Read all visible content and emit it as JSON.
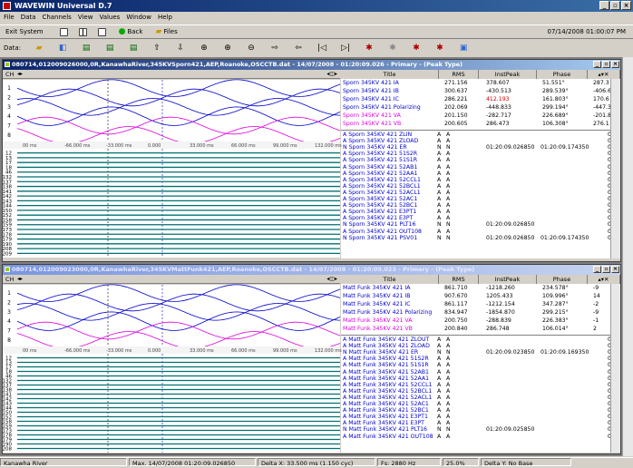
{
  "app": {
    "title": "WAVEWIN Universal D.7"
  },
  "menu": [
    "File",
    "Data",
    "Channels",
    "View",
    "Values",
    "Window",
    "Help"
  ],
  "toolbar1": {
    "exit": "Exit System",
    "back": "Back",
    "files": "Files",
    "datetime": "07/14/2008 01:00:07 PM"
  },
  "toolbar2": {
    "data_label": "Data:"
  },
  "window1": {
    "title": "080714,012009026000,0R,KanawhaRiver,345KVSporn421,AEP,Roanoke,OSCCTB.dat - 14/07/2008 - 01:20:09.026 - Primary - (Peak Type)",
    "ch_label": "CH",
    "columns": [
      "Title",
      "RMS",
      "InstPeak",
      "Phase"
    ],
    "analog": [
      {
        "num": "1",
        "title": "Sporn 345KV 421 IA",
        "rms": "271.156",
        "peak": "378.607",
        "phase": "51.551°",
        "extra": "287.3",
        "color": "#00c"
      },
      {
        "num": "2",
        "title": "Sporn 345KV 421 IB",
        "rms": "300.637",
        "peak": "-430.513",
        "phase": "289.539°",
        "extra": "-406.6",
        "color": "#00c"
      },
      {
        "num": "3",
        "title": "Sporn 345KV 421 IC",
        "rms": "286.221",
        "peak": "412.193",
        "phase": "161.803°",
        "extra": "170.6",
        "color": "#00c"
      },
      {
        "num": "4",
        "title": "Sporn 345KV 421 Polarizing",
        "rms": "202.069",
        "peak": "-448.833",
        "phase": "299.194°",
        "extra": "-447.3",
        "color": "#00c"
      },
      {
        "num": "7",
        "title": "Sporn 345KV 421 VA",
        "rms": "201.150",
        "peak": "-282.717",
        "phase": "226.689°",
        "extra": "-201.8",
        "color": "#d0d"
      },
      {
        "num": "8",
        "title": "Sporn 345KV 421 VB",
        "rms": "200.605",
        "peak": "286.473",
        "phase": "106.308°",
        "extra": "276.1",
        "color": "#d0d"
      }
    ],
    "ticks": [
      "00 ms",
      "-66.000 ms",
      "-33.000 ms",
      "0.000",
      "33.000 ms",
      "66.000 ms",
      "99.000 ms",
      "132.000 ms"
    ],
    "dig_nums": [
      "12",
      "13",
      "17",
      "18",
      "46",
      "132",
      "137",
      "138",
      "141",
      "142",
      "143",
      "144",
      "150",
      "152",
      "158",
      "159",
      "173",
      "178",
      "179",
      "190",
      "208",
      "209"
    ],
    "digital": [
      {
        "t": "A  Sporn 345KV 421 ZLIN",
        "a": "A",
        "b": "A",
        "v1": "",
        "v2": "",
        "c": "000"
      },
      {
        "t": "A  Sporn 345KV 421 ZLOAD",
        "a": "A",
        "b": "A",
        "v1": "",
        "v2": "",
        "c": "000"
      },
      {
        "t": "N  Sporn 345KV 421 ER",
        "a": "N",
        "b": "N",
        "v1": "01:20:09.026850",
        "v2": "01:20:09.174350",
        "c": "000"
      },
      {
        "t": "A  Sporn 345KV 421 51S2R",
        "a": "A",
        "b": "A",
        "v1": "",
        "v2": "",
        "c": "000"
      },
      {
        "t": "A  Sporn 345KV 421 51S1R",
        "a": "A",
        "b": "A",
        "v1": "",
        "v2": "",
        "c": "000"
      },
      {
        "t": "A  Sporn 345KV 421 52AB1",
        "a": "A",
        "b": "A",
        "v1": "",
        "v2": "",
        "c": "000"
      },
      {
        "t": "A  Sporn 345KV 421 52AA1",
        "a": "A",
        "b": "A",
        "v1": "",
        "v2": "",
        "c": "000"
      },
      {
        "t": "A  Sporn 345KV 421 52CCL1",
        "a": "A",
        "b": "A",
        "v1": "",
        "v2": "",
        "c": "000"
      },
      {
        "t": "A  Sporn 345KV 421 52BCL1",
        "a": "A",
        "b": "A",
        "v1": "",
        "v2": "",
        "c": "000"
      },
      {
        "t": "A  Sporn 345KV 421 52ACL1",
        "a": "A",
        "b": "A",
        "v1": "",
        "v2": "",
        "c": "000"
      },
      {
        "t": "A  Sporn 345KV 421 52AC1",
        "a": "A",
        "b": "A",
        "v1": "",
        "v2": "",
        "c": "000"
      },
      {
        "t": "A  Sporn 345KV 421 52BC1",
        "a": "A",
        "b": "A",
        "v1": "",
        "v2": "",
        "c": "000"
      },
      {
        "t": "A  Sporn 345KV 421 E3PT1",
        "a": "A",
        "b": "A",
        "v1": "",
        "v2": "",
        "c": "000"
      },
      {
        "t": "A  Sporn 345KV 421 E3PT",
        "a": "A",
        "b": "A",
        "v1": "",
        "v2": "",
        "c": "000"
      },
      {
        "t": "N  Sporn 345KV 421 PLT16",
        "a": "N",
        "b": "N",
        "v1": "01:20:09.026850",
        "v2": "",
        "c": "001"
      },
      {
        "t": "A  Sporn 345KV 421 OUT108",
        "a": "A",
        "b": "A",
        "v1": "",
        "v2": "",
        "c": "000"
      },
      {
        "t": "N  Sporn 345KV 421 PSV01",
        "a": "N",
        "b": "N",
        "v1": "01:20:09.026850",
        "v2": "01:20:09.174350",
        "c": "002"
      }
    ]
  },
  "window2": {
    "title": "080714,012009023000,0R,KanawhaRiver,345KVMattFunk421,AEP,Roanoke,OSCCTB.dat - 14/07/2008 - 01:20:09.023 - Primary - (Peak Type)",
    "ch_label": "CH",
    "columns": [
      "Title",
      "RMS",
      "InstPeak",
      "Phase"
    ],
    "analog": [
      {
        "num": "1",
        "title": "Matt Funk 345KV 421 IA",
        "rms": "861.710",
        "peak": "-1218.260",
        "phase": "234.578°",
        "extra": "-9",
        "color": "#00c"
      },
      {
        "num": "2",
        "title": "Matt Funk 345KV 421 IB",
        "rms": "907.670",
        "peak": "1205.433",
        "phase": "109.996°",
        "extra": "14",
        "color": "#00c"
      },
      {
        "num": "3",
        "title": "Matt Funk 345KV 421 IC",
        "rms": "861.117",
        "peak": "-1212.154",
        "phase": "347.287°",
        "extra": "-2",
        "color": "#00c"
      },
      {
        "num": "4",
        "title": "Matt Funk 345KV 421 Polarizing",
        "rms": "834.947",
        "peak": "-1854.870",
        "phase": "299.215°",
        "extra": "-9",
        "color": "#00c"
      },
      {
        "num": "7",
        "title": "Matt Funk 345KV 421 VA",
        "rms": "200.750",
        "peak": "-288.839",
        "phase": "226.383°",
        "extra": "-1",
        "color": "#d0d"
      },
      {
        "num": "8",
        "title": "Matt Funk 345KV 421 VB",
        "rms": "200.840",
        "peak": "286.748",
        "phase": "106.014°",
        "extra": "2",
        "color": "#d0d"
      }
    ],
    "ticks": [
      "00 ms",
      "-66.000 ms",
      "-33.000 ms",
      "0.000",
      "33.000 ms",
      "66.000 ms",
      "99.000 ms",
      "132.000 ms"
    ],
    "dig_nums": [
      "12",
      "13",
      "17",
      "18",
      "46",
      "132",
      "137",
      "138",
      "141",
      "142",
      "143",
      "144",
      "150",
      "152",
      "158",
      "159",
      "173",
      "178",
      "179",
      "190",
      "208"
    ],
    "digital": [
      {
        "t": "A  Matt Funk 345KV 421 ZLOUT",
        "a": "A",
        "b": "A",
        "v1": "",
        "v2": "",
        "c": "00"
      },
      {
        "t": "A  Matt Funk 345KV 421 ZLOAD",
        "a": "A",
        "b": "A",
        "v1": "",
        "v2": "",
        "c": "00"
      },
      {
        "t": "N  Matt Funk 345KV 421 ER",
        "a": "N",
        "b": "N",
        "v1": "01:20:09.023850",
        "v2": "01:20:09.169350",
        "c": "00"
      },
      {
        "t": "A  Matt Funk 345KV 421 51S2R",
        "a": "A",
        "b": "A",
        "v1": "",
        "v2": "",
        "c": "00"
      },
      {
        "t": "A  Matt Funk 345KV 421 51S1R",
        "a": "A",
        "b": "A",
        "v1": "",
        "v2": "",
        "c": "00"
      },
      {
        "t": "A  Matt Funk 345KV 421 52AB1",
        "a": "A",
        "b": "A",
        "v1": "",
        "v2": "",
        "c": "00"
      },
      {
        "t": "A  Matt Funk 345KV 421 52AA1",
        "a": "A",
        "b": "A",
        "v1": "",
        "v2": "",
        "c": "00"
      },
      {
        "t": "A  Matt Funk 345KV 421 52CCL1",
        "a": "A",
        "b": "A",
        "v1": "",
        "v2": "",
        "c": "00"
      },
      {
        "t": "A  Matt Funk 345KV 421 52BCL1",
        "a": "A",
        "b": "A",
        "v1": "",
        "v2": "",
        "c": "00"
      },
      {
        "t": "A  Matt Funk 345KV 421 52ACL1",
        "a": "A",
        "b": "A",
        "v1": "",
        "v2": "",
        "c": "00"
      },
      {
        "t": "A  Matt Funk 345KV 421 52AC1",
        "a": "A",
        "b": "A",
        "v1": "",
        "v2": "",
        "c": "00"
      },
      {
        "t": "A  Matt Funk 345KV 421 52BC1",
        "a": "A",
        "b": "A",
        "v1": "",
        "v2": "",
        "c": "00"
      },
      {
        "t": "A  Matt Funk 345KV 421 E3PT1",
        "a": "A",
        "b": "A",
        "v1": "",
        "v2": "",
        "c": "00"
      },
      {
        "t": "A  Matt Funk 345KV 421 E3PT",
        "a": "A",
        "b": "A",
        "v1": "",
        "v2": "",
        "c": "00"
      },
      {
        "t": "N  Matt Funk 345KV 421 PLT16",
        "a": "N",
        "b": "N",
        "v1": "01:20:09.025850",
        "v2": "",
        "c": "00"
      },
      {
        "t": "A  Matt Funk 345KV 421 OUT108",
        "a": "A",
        "b": "A",
        "v1": "",
        "v2": "",
        "c": "00"
      }
    ]
  },
  "status": [
    "Kanawha River",
    "Max. 14/07/2008 01:20:09.026850",
    "Delta X: 33.500 ms (1.150 cyc)",
    "Fs: 2880 Hz",
    "25.0%",
    "Delta Y: No Base"
  ]
}
